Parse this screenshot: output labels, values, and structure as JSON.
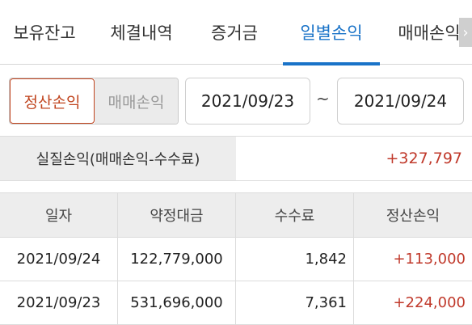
{
  "tabs": [
    {
      "label": "보유잔고",
      "active": false
    },
    {
      "label": "체결내역",
      "active": false
    },
    {
      "label": "증거금",
      "active": false
    },
    {
      "label": "일별손익",
      "active": true
    },
    {
      "label": "매매손익",
      "active": false
    }
  ],
  "filter": {
    "mode_selected": "정산손익",
    "mode_other": "매매손익",
    "date_from": "2021/09/23",
    "date_separator": "~",
    "date_to": "2021/09/24"
  },
  "summary": {
    "label": "실질손익(매매손익-수수료)",
    "value": "+327,797"
  },
  "table": {
    "headers": [
      "일자",
      "약정대금",
      "수수료",
      "정산손익"
    ],
    "rows": [
      {
        "date": "2021/09/24",
        "amount": "122,779,000",
        "fee": "1,842",
        "pnl": "+113,000"
      },
      {
        "date": "2021/09/23",
        "amount": "531,696,000",
        "fee": "7,361",
        "pnl": "+224,000"
      }
    ]
  },
  "colors": {
    "accent": "#1a73c8",
    "profit": "#c0392b",
    "selected_border": "#c0441e"
  }
}
